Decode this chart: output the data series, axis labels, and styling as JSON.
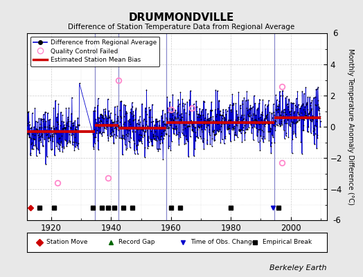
{
  "title": "DRUMMONDVILLE",
  "subtitle": "Difference of Station Temperature Data from Regional Average",
  "ylabel": "Monthly Temperature Anomaly Difference (°C)",
  "xlim": [
    1912,
    2012
  ],
  "ylim": [
    -6,
    6
  ],
  "yticks": [
    -4,
    -2,
    0,
    2,
    4
  ],
  "xticks": [
    1920,
    1940,
    1960,
    1980,
    2000
  ],
  "fig_bg_color": "#e8e8e8",
  "plot_bg_color": "#ffffff",
  "line_color": "#0000cc",
  "bias_color": "#cc0000",
  "qc_color": "#ff88cc",
  "seed": 42,
  "start_year": 1912,
  "end_year": 2010,
  "segment_breaks": [
    1934.5,
    1942.5,
    1958.5,
    1994.5
  ],
  "segment_biases": [
    -0.3,
    0.1,
    -0.1,
    0.25,
    0.6
  ],
  "gap_start": 1929.5,
  "gap_end": 1934.0,
  "vertical_lines": [
    1934.5,
    1942.5,
    1958.5,
    1994.5
  ],
  "qc_fail_approx": [
    [
      1922,
      -3.6
    ],
    [
      1939,
      -3.3
    ],
    [
      1942.5,
      3.0
    ],
    [
      1960,
      1.1
    ],
    [
      1967,
      1.2
    ],
    [
      1997,
      2.6
    ],
    [
      1997,
      -2.3
    ]
  ],
  "station_move_years": [
    1913
  ],
  "record_gap_years": [],
  "tobs_years": [
    1994
  ],
  "empirical_break_years": [
    1916,
    1921,
    1934,
    1937,
    1939,
    1941,
    1944,
    1947,
    1960,
    1963,
    1980,
    1996
  ]
}
